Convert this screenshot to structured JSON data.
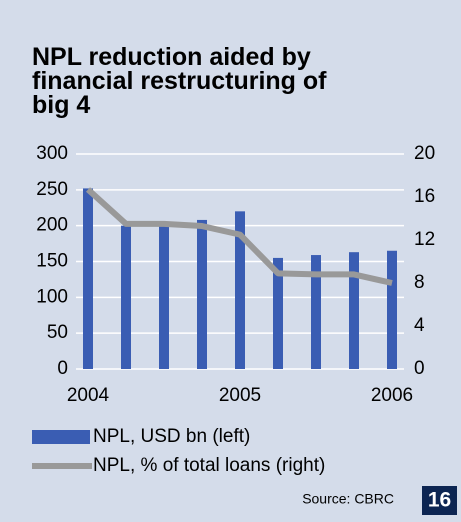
{
  "chart_data": {
    "type": "bar",
    "title": [
      "NPL reduction aided by",
      "financial restructuring of",
      "big 4"
    ],
    "categories": [
      "2004",
      null,
      null,
      null,
      "2005",
      null,
      null,
      null,
      "2006"
    ],
    "series": [
      {
        "name": "NPL, USD bn (left)",
        "type": "bar",
        "color": "#3a5db3",
        "values": [
          252,
          200,
          202,
          208,
          220,
          155,
          159,
          163,
          165
        ]
      },
      {
        "name": "NPL, % of total loans (right)",
        "type": "line",
        "axis": "y2",
        "color": "#999999",
        "values": [
          16.7,
          13.5,
          13.5,
          13.3,
          12.5,
          8.9,
          8.8,
          8.8,
          8.0
        ]
      }
    ],
    "ylim": [
      0,
      300
    ],
    "yticks": [
      0,
      50,
      100,
      150,
      200,
      250,
      300
    ],
    "y2lim": [
      0,
      20
    ],
    "y2ticks": [
      0,
      4,
      8,
      12,
      16,
      20
    ],
    "grid": true,
    "source": "Source: CBRC",
    "page_number": "16"
  }
}
